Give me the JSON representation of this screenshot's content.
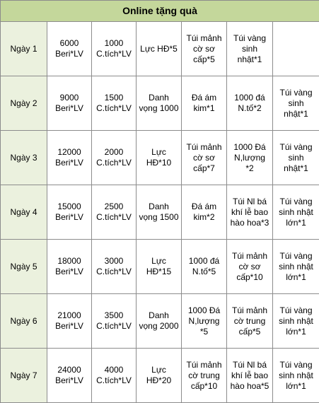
{
  "table": {
    "title": "Online tặng quà",
    "rows": [
      [
        "Ngày 1",
        "6000 Beri*LV",
        "1000 C.tích*LV",
        "Lực HĐ*5",
        "Túi mảnh cờ sơ cấp*5",
        "Túi vàng sinh nhật*1"
      ],
      [
        "Ngày 2",
        "9000 Beri*LV",
        "1500 C.tích*LV",
        "Danh vọng 1000",
        "Đá ám kim*1",
        "1000 đá N.tố*2",
        "Túi vàng sinh nhật*1"
      ],
      [
        "Ngày 3",
        "12000 Beri*LV",
        "2000 C.tích*LV",
        "Lực HĐ*10",
        "Túi mảnh cờ sơ cấp*7",
        "1000 Đá N,lượng *2",
        "Túi vàng sinh nhật*1"
      ],
      [
        "Ngày 4",
        "15000 Beri*LV",
        "2500 C.tích*LV",
        "Danh vọng 1500",
        "Đá ám kim*2",
        "Túi Nl bá khí lễ bao hào hoa*3",
        "Túi vàng sinh nhật lớn*1"
      ],
      [
        "Ngày 5",
        "18000 Beri*LV",
        "3000 C.tích*LV",
        "Lực HĐ*15",
        "1000 đá N.tố*5",
        "Túi mảnh cờ sơ cấp*10",
        "Túi vàng sinh nhật lớn*1"
      ],
      [
        "Ngày 6",
        "21000 Beri*LV",
        "3500 C.tích*LV",
        "Danh vọng 2000",
        "1000 Đá N,lượng *5",
        "Túi mảnh cờ trung cấp*5",
        "Túi vàng sinh nhật lớn*1"
      ],
      [
        "Ngày 7",
        "24000 Beri*LV",
        "4000 C.tích*LV",
        "Lực HĐ*20",
        "Túi mảnh cờ trung cấp*10",
        "Túi Nl bá khí lễ bao hào hoa*5",
        "Túi vàng sinh nhật lớn*1"
      ]
    ]
  }
}
